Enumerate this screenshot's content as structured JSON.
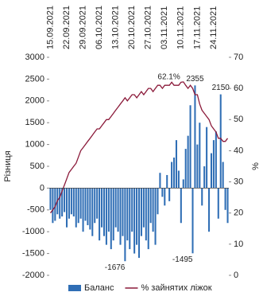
{
  "chart_data": {
    "type": "bar-line",
    "categories": [
      "15.09.2021",
      null,
      null,
      null,
      null,
      null,
      null,
      "22.09.2021",
      null,
      null,
      null,
      null,
      null,
      null,
      "29.09.2021",
      null,
      null,
      null,
      null,
      null,
      null,
      "06.10.2021",
      null,
      null,
      null,
      null,
      null,
      null,
      "13.10.2021",
      null,
      null,
      null,
      null,
      null,
      null,
      "20.10.2021",
      null,
      null,
      null,
      null,
      null,
      null,
      "27.10.2021",
      null,
      null,
      null,
      null,
      null,
      null,
      "03.11.2021",
      null,
      null,
      null,
      null,
      null,
      null,
      "10.11.2021",
      null,
      null,
      null,
      null,
      null,
      null,
      "17.11.2021",
      null,
      null,
      null,
      null,
      null,
      null,
      "24.11.2021",
      null,
      null,
      null,
      null,
      null,
      null
    ],
    "series": [
      {
        "name": "Баланс",
        "color": "#2f6eb5",
        "axis": "y",
        "values": [
          -500,
          -800,
          -750,
          -600,
          -700,
          -650,
          -550,
          -900,
          -700,
          -600,
          -650,
          -900,
          -800,
          -700,
          -1000,
          -750,
          -850,
          -950,
          -1100,
          -800,
          -700,
          -1200,
          -900,
          -1100,
          -1300,
          -1000,
          -1400,
          -1200,
          -900,
          -1000,
          -1300,
          -1100,
          -1676,
          -1200,
          -1400,
          -1000,
          -1500,
          -1300,
          -1600,
          -1100,
          -900,
          -1200,
          -1400,
          -800,
          -1000,
          -1300,
          -600,
          350,
          -200,
          -400,
          300,
          -300,
          600,
          700,
          1100,
          400,
          -800,
          200,
          900,
          1200,
          1900,
          -1495,
          2355,
          1000,
          1500,
          -400,
          500,
          1400,
          -1000,
          800,
          1100,
          1300,
          -700,
          2150,
          600,
          -500,
          -800
        ],
        "value_labels": [
          null,
          null,
          null,
          null,
          null,
          null,
          null,
          null,
          null,
          null,
          null,
          null,
          null,
          null,
          null,
          null,
          null,
          null,
          null,
          null,
          null,
          null,
          null,
          null,
          null,
          null,
          null,
          null,
          null,
          null,
          null,
          null,
          "-1676",
          null,
          null,
          null,
          null,
          null,
          null,
          null,
          null,
          null,
          null,
          null,
          null,
          null,
          null,
          null,
          null,
          null,
          null,
          null,
          null,
          null,
          null,
          null,
          null,
          null,
          null,
          null,
          null,
          "-1495",
          "2355",
          null,
          null,
          null,
          null,
          null,
          null,
          null,
          null,
          null,
          null,
          "2150",
          null,
          null,
          null
        ]
      },
      {
        "name": "% зайнятих ліжок",
        "color": "#8b1a3a",
        "axis": "y2",
        "values": [
          20,
          21,
          22,
          24,
          25,
          27,
          29,
          31,
          33,
          34,
          35,
          36,
          38,
          40,
          41,
          42,
          43,
          44,
          45,
          46,
          47,
          47,
          48,
          49,
          50,
          50,
          51,
          52,
          53,
          54,
          55,
          56,
          57,
          56,
          57,
          58,
          58,
          57,
          58,
          59,
          58,
          59,
          60,
          60,
          59,
          60,
          61,
          61,
          60,
          61,
          61,
          61,
          62,
          61,
          61,
          61,
          62,
          62.1,
          61,
          60,
          61,
          60,
          58,
          58,
          55,
          53,
          52,
          51,
          50,
          48,
          47,
          46,
          44,
          44,
          43,
          43,
          44
        ],
        "value_labels": [
          null,
          null,
          null,
          null,
          null,
          null,
          null,
          null,
          null,
          null,
          null,
          null,
          null,
          null,
          null,
          null,
          null,
          null,
          null,
          null,
          null,
          null,
          null,
          null,
          null,
          null,
          null,
          null,
          null,
          null,
          null,
          null,
          null,
          null,
          null,
          null,
          null,
          null,
          null,
          null,
          null,
          null,
          null,
          null,
          null,
          null,
          null,
          null,
          null,
          null,
          null,
          null,
          null,
          null,
          null,
          null,
          null,
          "62.1%",
          null,
          null,
          null,
          null,
          null,
          null,
          null,
          null,
          null,
          null,
          null,
          null,
          null,
          null,
          null,
          null,
          null,
          null,
          null
        ]
      }
    ],
    "ylabel": "Різниця",
    "y2label": "%",
    "ylim": [
      -2000,
      3000
    ],
    "yticks": [
      -2000,
      -1500,
      -1000,
      -500,
      0,
      500,
      1000,
      1500,
      2000,
      2500,
      3000
    ],
    "y2lim": [
      0,
      70
    ],
    "y2ticks": [
      0,
      10,
      20,
      30,
      40,
      50,
      60,
      70
    ],
    "legend": "bottom"
  }
}
